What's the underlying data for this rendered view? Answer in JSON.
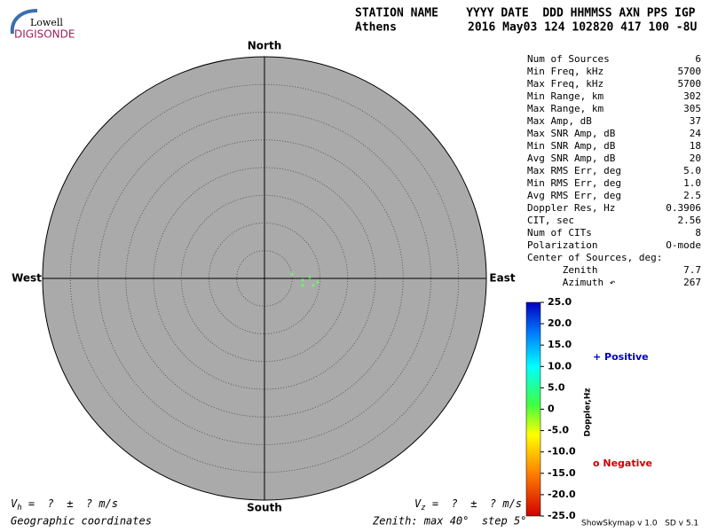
{
  "logo": {
    "top": "Lowell",
    "bottom": "DIGISONDE"
  },
  "header": {
    "columns": "STATION NAME    YYYY DATE  DDD HHMMSS AXN PPS IGP",
    "station": "Athens",
    "stamp": "2016 May03 124 102820 417 100 -8U"
  },
  "stats": [
    [
      "Num of Sources",
      "6"
    ],
    [
      "Min Freq, kHz",
      "5700"
    ],
    [
      "Max Freq, kHz",
      "5700"
    ],
    [
      "Min Range, km",
      "302"
    ],
    [
      "Max Range, km",
      "305"
    ],
    [
      "Max Amp, dB",
      "37"
    ],
    [
      "Max SNR Amp, dB",
      "24"
    ],
    [
      "Min SNR Amp, dB",
      "18"
    ],
    [
      "Avg SNR Amp, dB",
      "20"
    ],
    [
      "Max RMS Err, deg",
      "5.0"
    ],
    [
      "Min RMS Err, deg",
      "1.0"
    ],
    [
      "Avg RMS Err, deg",
      "2.5"
    ],
    [
      "Doppler Res, Hz",
      "0.3906"
    ],
    [
      "CIT, sec",
      "2.56"
    ],
    [
      "Num of CITs",
      "8"
    ],
    [
      "Polarization",
      "O-mode"
    ],
    [
      "Center of Sources, deg:",
      ""
    ],
    [
      "      Zenith",
      "7.7"
    ],
    [
      "      Azimuth ↶",
      "267"
    ]
  ],
  "velocity": {
    "h_symbol": "V",
    "h_sub": "h",
    "h_text": " =  ?  ±  ? m/s",
    "z_symbol": "V",
    "z_sub": "z",
    "z_text": " =  ?  ±  ? m/s"
  },
  "footer": {
    "coords": "Geographic coordinates",
    "version": "ShowSkymap v 1.0   SD v 5.1"
  },
  "chart_data": {
    "type": "skymap",
    "directions": {
      "north": "North",
      "south": "South",
      "west": "West",
      "east": "East"
    },
    "zenith": {
      "label": "Zenith: max 40°  step 5°",
      "max": 40,
      "step": 5
    },
    "x": [
      4.96,
      6.88,
      6.88,
      8.16,
      8.8,
      9.6
    ],
    "values": [
      0.8,
      -0.32,
      -1.28,
      0.16,
      -1.28,
      -0.64
    ],
    "color": "#66ff66",
    "clim": [
      -25,
      25
    ],
    "colorbar_label": "Doppler,Hz",
    "colorbar_ticks": [
      {
        "value": 25,
        "label": "25.0"
      },
      {
        "value": 20,
        "label": "20.0"
      },
      {
        "value": 15,
        "label": "15.0"
      },
      {
        "value": 10,
        "label": "10.0"
      },
      {
        "value": 5,
        "label": "5.0"
      },
      0,
      {
        "value": -5,
        "label": "-5.0"
      },
      {
        "value": -10,
        "label": "-10.0"
      },
      {
        "value": -15,
        "label": "-15.0"
      },
      {
        "value": -20,
        "label": "-20.0"
      },
      {
        "value": -25,
        "label": "-25.0"
      }
    ],
    "legend": {
      "positive": "+ Positive",
      "negative": "o Negative"
    }
  }
}
